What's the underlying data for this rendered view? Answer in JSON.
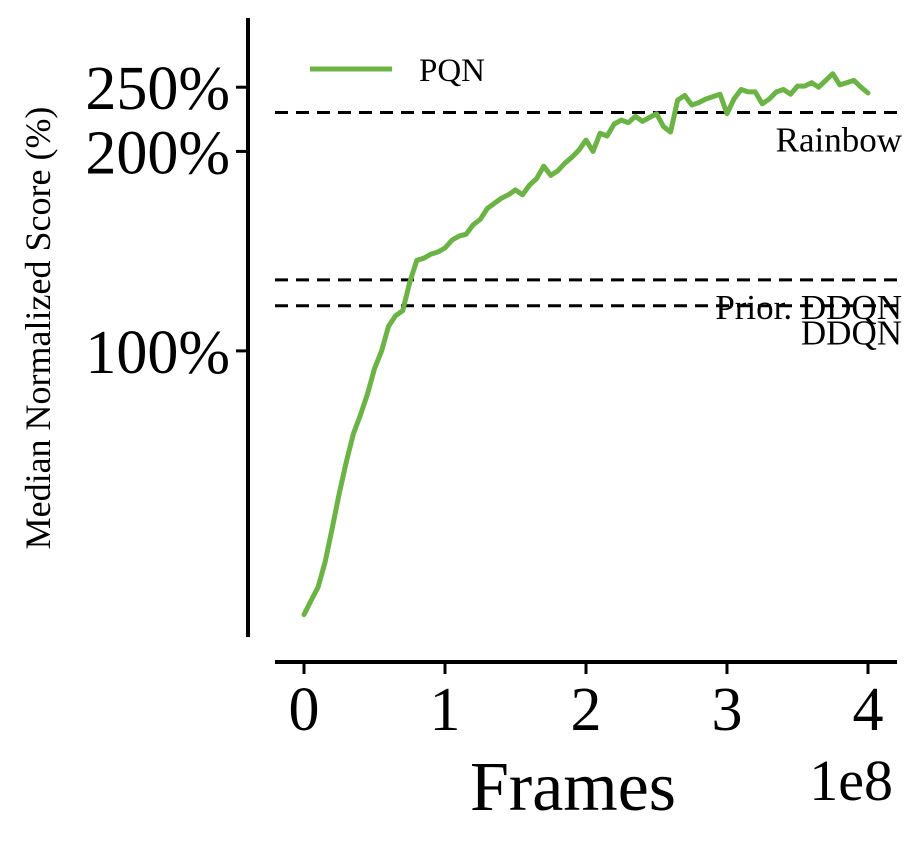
{
  "chart_data": {
    "type": "line",
    "xlabel": "Frames",
    "x_scale_label": "1e8",
    "ylabel": "Median Normalized Score (%)",
    "y_scale": "log",
    "xlim": [
      -0.2,
      4.2
    ],
    "ylim": [
      37,
      305
    ],
    "x_ticks": [
      {
        "value": 0,
        "label": "0"
      },
      {
        "value": 1,
        "label": "1"
      },
      {
        "value": 2,
        "label": "2"
      },
      {
        "value": 3,
        "label": "3"
      },
      {
        "value": 4,
        "label": "4"
      }
    ],
    "y_ticks": [
      {
        "value": 100,
        "label": "100%"
      },
      {
        "value": 200,
        "label": "200%"
      },
      {
        "value": 250,
        "label": "250%"
      }
    ],
    "legend": {
      "position": "top-left"
    },
    "colors": {
      "pqn": "#6ab344",
      "reference": "#000000",
      "axis": "#000000"
    },
    "grid": false,
    "series": [
      {
        "name": "PQN",
        "x": [
          0.0,
          0.05,
          0.1,
          0.15,
          0.2,
          0.25,
          0.3,
          0.35,
          0.4,
          0.45,
          0.5,
          0.55,
          0.6,
          0.65,
          0.7,
          0.75,
          0.8,
          0.85,
          0.9,
          0.95,
          1.0,
          1.05,
          1.1,
          1.15,
          1.2,
          1.25,
          1.3,
          1.35,
          1.4,
          1.45,
          1.5,
          1.55,
          1.6,
          1.65,
          1.7,
          1.75,
          1.8,
          1.85,
          1.9,
          1.95,
          2.0,
          2.05,
          2.1,
          2.15,
          2.2,
          2.25,
          2.3,
          2.35,
          2.4,
          2.45,
          2.5,
          2.55,
          2.6,
          2.65,
          2.7,
          2.75,
          2.8,
          2.85,
          2.9,
          2.95,
          3.0,
          3.05,
          3.1,
          3.15,
          3.2,
          3.25,
          3.3,
          3.35,
          3.4,
          3.45,
          3.5,
          3.55,
          3.6,
          3.65,
          3.7,
          3.75,
          3.8,
          3.85,
          3.9,
          3.95,
          4.0
        ],
        "values": [
          40,
          42,
          44,
          48,
          54,
          61,
          68,
          75,
          80,
          86,
          94,
          100,
          109,
          113,
          115,
          127,
          137,
          138,
          140,
          141,
          143,
          147,
          149,
          150,
          155,
          158,
          164,
          167,
          170,
          172,
          175,
          172,
          178,
          182,
          190,
          184,
          187,
          192,
          196,
          201,
          208,
          200,
          213,
          211,
          220,
          223,
          221,
          226,
          222,
          225,
          228,
          218,
          214,
          239,
          243,
          235,
          237,
          240,
          242,
          244,
          228,
          240,
          248,
          246,
          246,
          236,
          240,
          246,
          248,
          244,
          251,
          251,
          254,
          250,
          256,
          262,
          252,
          254,
          256,
          250,
          245
        ]
      }
    ],
    "reference_lines": [
      {
        "name": "Rainbow",
        "value": 229
      },
      {
        "name": "Prior. DDQN",
        "value": 128
      },
      {
        "name": "DDQN",
        "value": 117
      }
    ]
  }
}
